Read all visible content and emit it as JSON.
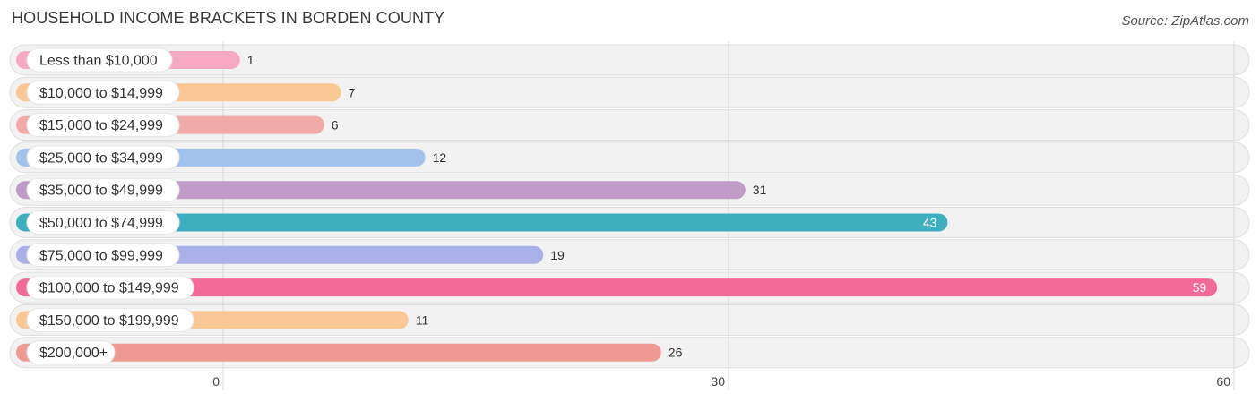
{
  "title": "HOUSEHOLD INCOME BRACKETS IN BORDEN COUNTY",
  "source": "Source: ZipAtlas.com",
  "chart_data": {
    "type": "bar",
    "orientation": "horizontal",
    "title": "HOUSEHOLD INCOME BRACKETS IN BORDEN COUNTY",
    "categories": [
      "Less than $10,000",
      "$10,000 to $14,999",
      "$15,000 to $24,999",
      "$25,000 to $34,999",
      "$35,000 to $49,999",
      "$50,000 to $74,999",
      "$75,000 to $99,999",
      "$100,000 to $149,999",
      "$150,000 to $199,999",
      "$200,000+"
    ],
    "values": [
      1,
      7,
      6,
      12,
      31,
      43,
      19,
      59,
      11,
      26
    ],
    "colors": [
      "#f7a9c4",
      "#f9c894",
      "#f0aaa8",
      "#a2c1eb",
      "#c09bc8",
      "#3eafbf",
      "#aab0e8",
      "#f26b98",
      "#f9c894",
      "#ee9a93"
    ],
    "value_label_inside": [
      false,
      false,
      false,
      false,
      false,
      true,
      false,
      true,
      false,
      false
    ],
    "xlim": [
      0,
      60
    ],
    "xticks": [
      0,
      30,
      60
    ],
    "xlabel": "",
    "ylabel": "",
    "grid": true,
    "legend": "none"
  }
}
